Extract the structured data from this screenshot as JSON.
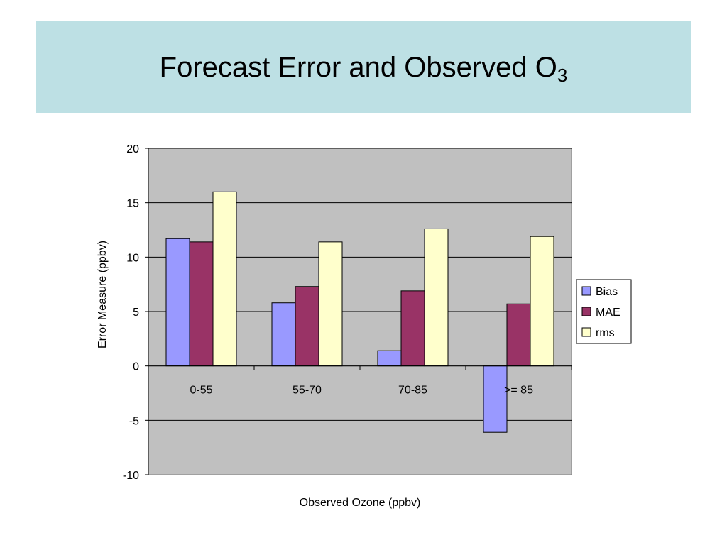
{
  "slide": {
    "title": "Forecast Error and Observed O",
    "title_subscript": "3",
    "title_band_color": "#bde0e4"
  },
  "chart_data": {
    "type": "bar",
    "title": "",
    "xlabel": "Observed Ozone (ppbv)",
    "ylabel": "Error Measure (ppbv)",
    "ylim": [
      -10,
      20
    ],
    "yticks": [
      -10,
      -5,
      0,
      5,
      10,
      15,
      20
    ],
    "categories": [
      "0-55",
      "55-70",
      "70-85",
      ">= 85"
    ],
    "series": [
      {
        "name": "Bias",
        "color": "#9999ff",
        "values": [
          11.7,
          5.8,
          1.4,
          -6.1
        ]
      },
      {
        "name": "MAE",
        "color": "#993366",
        "values": [
          11.4,
          7.3,
          6.9,
          5.7
        ]
      },
      {
        "name": "rms",
        "color": "#ffffcc",
        "values": [
          16.0,
          11.4,
          12.6,
          11.9
        ]
      }
    ],
    "grid": true,
    "plot_background": "#c0c0c0",
    "legend": "right"
  }
}
